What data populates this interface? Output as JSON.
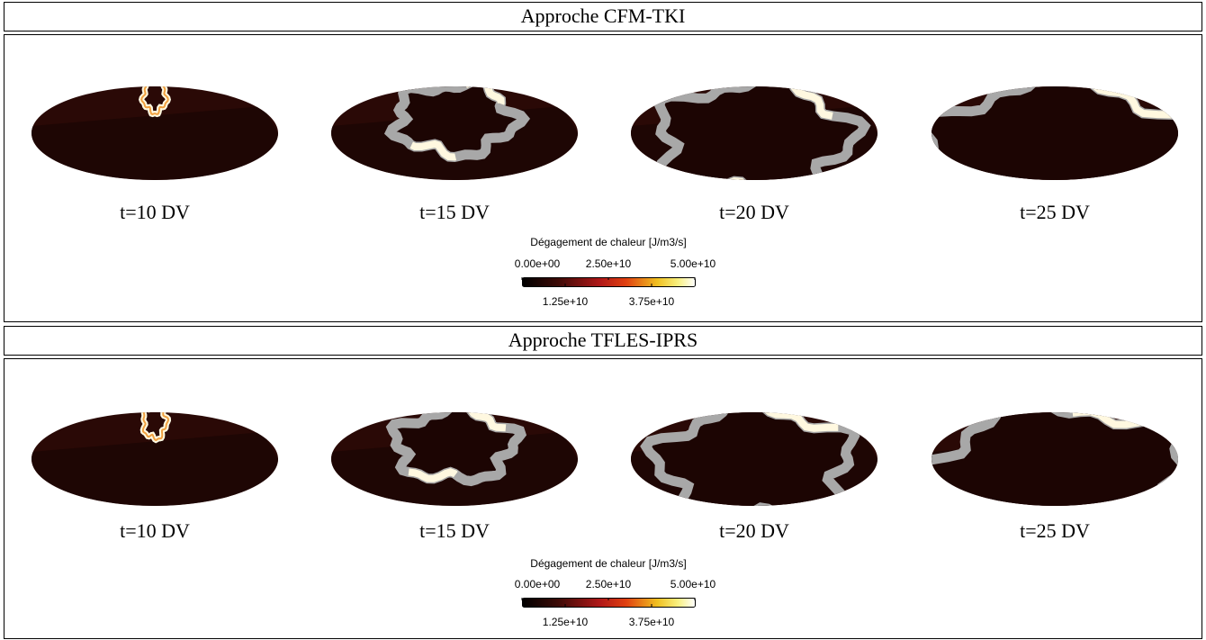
{
  "panels": [
    {
      "title": "Approche CFM-TKI",
      "frames": [
        "t=10 DV",
        "t=15 DV",
        "t=20 DV",
        "t=25 DV"
      ],
      "colorbar": {
        "title": "Dégagement de chaleur [J/m3/s]",
        "ticks_top": [
          "0.00e+00",
          "2.50e+10",
          "5.00e+10"
        ],
        "ticks_bottom": [
          "1.25e+10",
          "3.75e+10"
        ]
      }
    },
    {
      "title": "Approche TFLES-IPRS",
      "frames": [
        "t=10 DV",
        "t=15 DV",
        "t=20 DV",
        "t=25 DV"
      ],
      "colorbar": {
        "title": "Dégagement de chaleur [J/m3/s]",
        "ticks_top": [
          "0.00e+00",
          "2.50e+10",
          "5.00e+10"
        ],
        "ticks_bottom": [
          "1.25e+10",
          "3.75e+10"
        ]
      }
    }
  ]
}
